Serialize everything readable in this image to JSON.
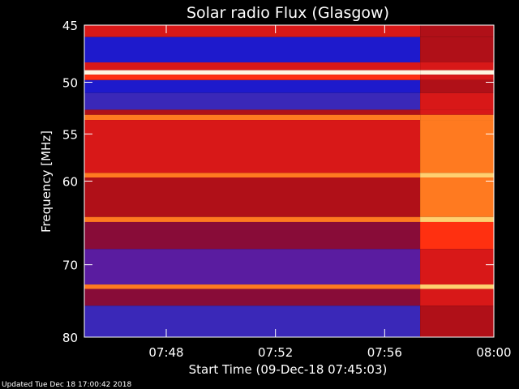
{
  "chart_data": {
    "type": "heatmap",
    "title": "Solar radio Flux (Glasgow)",
    "xlabel": "Start Time (09-Dec-18 07:45:03)",
    "ylabel": "Frequency [MHz]",
    "x_ticks": [
      {
        "label": "07:48",
        "value": 3.0
      },
      {
        "label": "07:52",
        "value": 7.0
      },
      {
        "label": "07:56",
        "value": 11.0
      },
      {
        "label": "08:00",
        "value": 15.0
      }
    ],
    "y_ticks": [
      {
        "label": "45",
        "value": 45
      },
      {
        "label": "50",
        "value": 50
      },
      {
        "label": "55",
        "value": 55
      },
      {
        "label": "60",
        "value": 60
      },
      {
        "label": "70",
        "value": 70
      },
      {
        "label": "80",
        "value": 80
      }
    ],
    "xlim_minutes": [
      0,
      15
    ],
    "ylim": [
      45,
      80
    ],
    "y_scale": "log",
    "colormap": [
      "#1e1acc",
      "#3a28b8",
      "#5a1ca0",
      "#880c38",
      "#b01018",
      "#d81818",
      "#ff3010",
      "#ff7a20",
      "#ffd070",
      "#fff6e0"
    ],
    "bands": [
      {
        "f1": 45.0,
        "f2": 46.0,
        "before": 5,
        "after": 4
      },
      {
        "f1": 46.0,
        "f2": 48.2,
        "before": 0,
        "after": 4
      },
      {
        "f1": 48.2,
        "f2": 48.9,
        "before": 5,
        "after": 5
      },
      {
        "f1": 48.9,
        "f2": 49.3,
        "before": 9,
        "after": 9
      },
      {
        "f1": 49.3,
        "f2": 49.8,
        "before": 6,
        "after": 5
      },
      {
        "f1": 49.8,
        "f2": 51.0,
        "before": 0,
        "after": 4
      },
      {
        "f1": 51.0,
        "f2": 52.6,
        "before": 1,
        "after": 5
      },
      {
        "f1": 52.6,
        "f2": 53.1,
        "before": 4,
        "after": 5
      },
      {
        "f1": 53.1,
        "f2": 53.6,
        "before": 7,
        "after": 7
      },
      {
        "f1": 53.6,
        "f2": 59.1,
        "before": 5,
        "after": 7
      },
      {
        "f1": 59.1,
        "f2": 59.6,
        "before": 7,
        "after": 8
      },
      {
        "f1": 59.6,
        "f2": 64.1,
        "before": 4,
        "after": 7
      },
      {
        "f1": 64.1,
        "f2": 64.7,
        "before": 7,
        "after": 8
      },
      {
        "f1": 64.7,
        "f2": 68.0,
        "before": 3,
        "after": 6
      },
      {
        "f1": 68.0,
        "f2": 72.6,
        "before": 2,
        "after": 5
      },
      {
        "f1": 72.6,
        "f2": 73.2,
        "before": 7,
        "after": 8
      },
      {
        "f1": 73.2,
        "f2": 75.5,
        "before": 3,
        "after": 5
      },
      {
        "f1": 75.5,
        "f2": 80.0,
        "before": 1,
        "after": 4
      }
    ],
    "burst_start_minutes": 12.3,
    "grid": false,
    "legend": "none"
  },
  "footer": {
    "updated": "Updated Tue Dec 18 17:00:42 2018"
  }
}
